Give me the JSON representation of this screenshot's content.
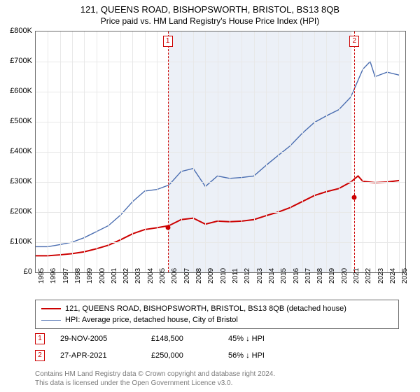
{
  "title": "121, QUEENS ROAD, BISHOPSWORTH, BRISTOL, BS13 8QB",
  "subtitle": "Price paid vs. HM Land Registry's House Price Index (HPI)",
  "chart": {
    "type": "line",
    "x_years": [
      1995,
      1996,
      1997,
      1998,
      1999,
      2000,
      2001,
      2002,
      2003,
      2004,
      2005,
      2006,
      2007,
      2008,
      2009,
      2010,
      2011,
      2012,
      2013,
      2014,
      2015,
      2016,
      2017,
      2018,
      2019,
      2020,
      2021,
      2022,
      2023,
      2024,
      2025
    ],
    "xlim": [
      1995,
      2025.5
    ],
    "ylim": [
      0,
      800000
    ],
    "ytick_step": 100000,
    "ytick_prefix": "£",
    "ytick_suffix": "K",
    "ytick_divisor": 1000,
    "grid_color": "#e8e8e8",
    "border_color": "#6b6b6b",
    "background_color": "#ffffff",
    "band": {
      "from": 2006,
      "to": 2021,
      "color": "#e4e9f4"
    },
    "series": [
      {
        "name": "price_paid",
        "label": "121, QUEENS ROAD, BISHOPSWORTH, BRISTOL, BS13 8QB (detached house)",
        "color": "#cc0000",
        "width": 2,
        "data": [
          [
            1995,
            55000
          ],
          [
            1996,
            55000
          ],
          [
            1997,
            58000
          ],
          [
            1998,
            62000
          ],
          [
            1999,
            68000
          ],
          [
            2000,
            78000
          ],
          [
            2001,
            90000
          ],
          [
            2002,
            108000
          ],
          [
            2003,
            128000
          ],
          [
            2004,
            142000
          ],
          [
            2005,
            148000
          ],
          [
            2006,
            155000
          ],
          [
            2007,
            175000
          ],
          [
            2008,
            180000
          ],
          [
            2009,
            160000
          ],
          [
            2010,
            170000
          ],
          [
            2011,
            168000
          ],
          [
            2012,
            170000
          ],
          [
            2013,
            175000
          ],
          [
            2014,
            188000
          ],
          [
            2015,
            200000
          ],
          [
            2016,
            215000
          ],
          [
            2017,
            235000
          ],
          [
            2018,
            255000
          ],
          [
            2019,
            268000
          ],
          [
            2020,
            278000
          ],
          [
            2021,
            300000
          ],
          [
            2021.6,
            320000
          ],
          [
            2022,
            302000
          ],
          [
            2023,
            298000
          ],
          [
            2024,
            300000
          ],
          [
            2025,
            305000
          ]
        ]
      },
      {
        "name": "hpi",
        "label": "HPI: Average price, detached house, City of Bristol",
        "color": "#4a6db0",
        "width": 1.4,
        "data": [
          [
            1995,
            85000
          ],
          [
            1996,
            85000
          ],
          [
            1997,
            92000
          ],
          [
            1998,
            100000
          ],
          [
            1999,
            115000
          ],
          [
            2000,
            135000
          ],
          [
            2001,
            155000
          ],
          [
            2002,
            190000
          ],
          [
            2003,
            235000
          ],
          [
            2004,
            270000
          ],
          [
            2005,
            275000
          ],
          [
            2006,
            290000
          ],
          [
            2007,
            335000
          ],
          [
            2008,
            345000
          ],
          [
            2009,
            285000
          ],
          [
            2010,
            320000
          ],
          [
            2011,
            312000
          ],
          [
            2012,
            315000
          ],
          [
            2013,
            320000
          ],
          [
            2014,
            355000
          ],
          [
            2015,
            388000
          ],
          [
            2016,
            420000
          ],
          [
            2017,
            462000
          ],
          [
            2018,
            498000
          ],
          [
            2019,
            520000
          ],
          [
            2020,
            540000
          ],
          [
            2021,
            582000
          ],
          [
            2022,
            675000
          ],
          [
            2022.6,
            700000
          ],
          [
            2023,
            650000
          ],
          [
            2024,
            665000
          ],
          [
            2025,
            655000
          ]
        ]
      }
    ],
    "sales": [
      {
        "n": "1",
        "year": 2005.9,
        "price": 148500,
        "date": "29-NOV-2005",
        "price_label": "£148,500",
        "diff": "45% ↓ HPI"
      },
      {
        "n": "2",
        "year": 2021.3,
        "price": 250000,
        "date": "27-APR-2021",
        "price_label": "£250,000",
        "diff": "56% ↓ HPI"
      }
    ],
    "marker_border_color": "#cc0000",
    "marker_text_color": "#cc0000",
    "vline_color": "#cc0000",
    "dot_color": "#cc0000"
  },
  "footnote_line1": "Contains HM Land Registry data © Crown copyright and database right 2024.",
  "footnote_line2": "This data is licensed under the Open Government Licence v3.0."
}
